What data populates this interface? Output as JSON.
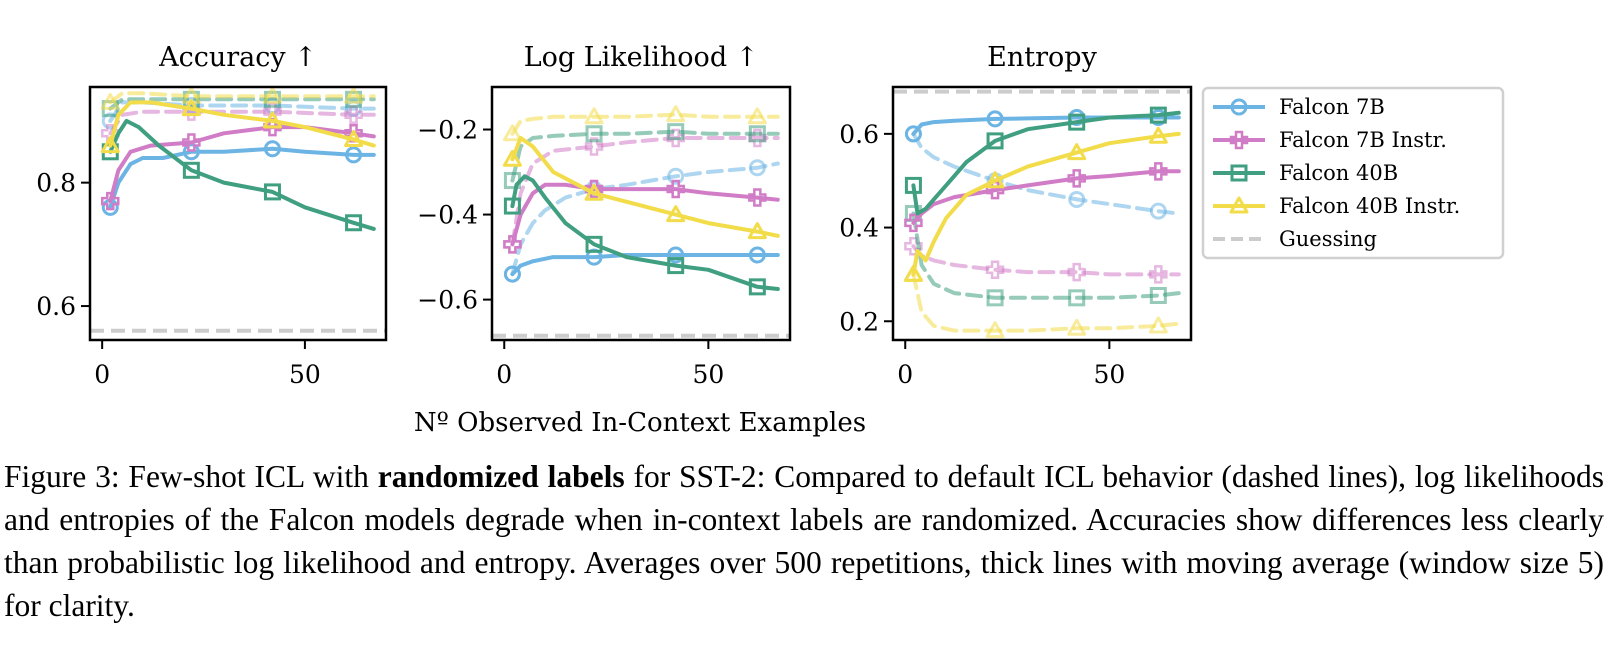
{
  "figure": {
    "shared_xlabel": "Nº Observed In-Context Examples",
    "legend": [
      {
        "name": "Falcon 7B",
        "color": "#6cb4e4",
        "marker": "circle"
      },
      {
        "name": "Falcon 7B Instr.",
        "color": "#d17cc6",
        "marker": "plus"
      },
      {
        "name": "Falcon 40B",
        "color": "#3f9f80",
        "marker": "square"
      },
      {
        "name": "Falcon 40B Instr.",
        "color": "#f2dc4a",
        "marker": "triangle"
      },
      {
        "name": "Guessing",
        "color": "#cccccc",
        "marker": "none"
      }
    ]
  },
  "chart_data": [
    {
      "type": "line",
      "title": "Accuracy ↑",
      "xlabel": "",
      "ylabel": "",
      "xlim": [
        -3,
        70
      ],
      "ylim": [
        0.545,
        0.955
      ],
      "xticks": [
        0,
        50
      ],
      "yticks": [
        0.6,
        0.8
      ],
      "ytick_labels": [
        "0.6",
        "0.8"
      ],
      "guessing": 0.56,
      "series": [
        {
          "name": "Falcon 7B",
          "style": "solid",
          "x": [
            2,
            4,
            7,
            10,
            15,
            22,
            30,
            42,
            50,
            62,
            67
          ],
          "y": [
            0.76,
            0.8,
            0.83,
            0.84,
            0.84,
            0.85,
            0.85,
            0.855,
            0.85,
            0.845,
            0.845
          ]
        },
        {
          "name": "Falcon 7B Instr.",
          "style": "solid",
          "x": [
            2,
            4,
            7,
            12,
            22,
            30,
            42,
            50,
            62,
            67
          ],
          "y": [
            0.77,
            0.82,
            0.85,
            0.86,
            0.865,
            0.88,
            0.89,
            0.89,
            0.88,
            0.875
          ]
        },
        {
          "name": "Falcon 40B",
          "style": "solid",
          "x": [
            2,
            4,
            6,
            9,
            14,
            22,
            30,
            42,
            50,
            62,
            67
          ],
          "y": [
            0.85,
            0.88,
            0.9,
            0.89,
            0.86,
            0.82,
            0.8,
            0.785,
            0.76,
            0.735,
            0.725
          ]
        },
        {
          "name": "Falcon 40B Instr.",
          "style": "solid",
          "x": [
            2,
            4,
            7,
            12,
            22,
            30,
            42,
            50,
            62,
            67
          ],
          "y": [
            0.86,
            0.91,
            0.93,
            0.93,
            0.92,
            0.91,
            0.9,
            0.89,
            0.87,
            0.86
          ]
        },
        {
          "name": "Falcon 7B",
          "style": "dashed",
          "x": [
            2,
            5,
            10,
            22,
            42,
            62,
            67
          ],
          "y": [
            0.9,
            0.93,
            0.93,
            0.925,
            0.925,
            0.92,
            0.92
          ]
        },
        {
          "name": "Falcon 7B Instr.",
          "style": "dashed",
          "x": [
            2,
            5,
            10,
            22,
            42,
            62,
            67
          ],
          "y": [
            0.88,
            0.91,
            0.915,
            0.915,
            0.915,
            0.91,
            0.91
          ]
        },
        {
          "name": "Falcon 40B",
          "style": "dashed",
          "x": [
            2,
            5,
            10,
            22,
            42,
            62,
            67
          ],
          "y": [
            0.92,
            0.935,
            0.935,
            0.935,
            0.935,
            0.935,
            0.935
          ]
        },
        {
          "name": "Falcon 40B Instr.",
          "style": "dashed",
          "x": [
            2,
            5,
            10,
            22,
            42,
            62,
            67
          ],
          "y": [
            0.93,
            0.945,
            0.945,
            0.94,
            0.94,
            0.94,
            0.94
          ]
        }
      ]
    },
    {
      "type": "line",
      "title": "Log Likelihood ↑",
      "xlabel": "",
      "ylabel": "",
      "xlim": [
        -3,
        70
      ],
      "ylim": [
        -0.695,
        -0.1
      ],
      "xticks": [
        0,
        50
      ],
      "yticks": [
        -0.6,
        -0.4,
        -0.2
      ],
      "ytick_labels": [
        "−0.6",
        "−0.4",
        "−0.2"
      ],
      "guessing": -0.685,
      "series": [
        {
          "name": "Falcon 7B",
          "style": "solid",
          "x": [
            2,
            4,
            7,
            12,
            22,
            30,
            42,
            50,
            62,
            67
          ],
          "y": [
            -0.54,
            -0.52,
            -0.51,
            -0.5,
            -0.5,
            -0.495,
            -0.495,
            -0.495,
            -0.495,
            -0.495
          ]
        },
        {
          "name": "Falcon 7B Instr.",
          "style": "solid",
          "x": [
            2,
            4,
            7,
            10,
            15,
            22,
            30,
            42,
            50,
            62,
            67
          ],
          "y": [
            -0.47,
            -0.4,
            -0.35,
            -0.33,
            -0.33,
            -0.34,
            -0.34,
            -0.34,
            -0.35,
            -0.36,
            -0.365
          ]
        },
        {
          "name": "Falcon 40B",
          "style": "solid",
          "x": [
            2,
            3,
            5,
            7,
            10,
            15,
            22,
            30,
            42,
            50,
            62,
            67
          ],
          "y": [
            -0.38,
            -0.33,
            -0.31,
            -0.32,
            -0.36,
            -0.42,
            -0.47,
            -0.5,
            -0.52,
            -0.53,
            -0.57,
            -0.575
          ]
        },
        {
          "name": "Falcon 40B Instr.",
          "style": "solid",
          "x": [
            2,
            4,
            7,
            12,
            22,
            30,
            42,
            50,
            62,
            67
          ],
          "y": [
            -0.27,
            -0.22,
            -0.24,
            -0.3,
            -0.35,
            -0.37,
            -0.4,
            -0.42,
            -0.44,
            -0.45
          ]
        },
        {
          "name": "Falcon 7B",
          "style": "dashed",
          "x": [
            2,
            4,
            7,
            10,
            15,
            22,
            30,
            42,
            50,
            62,
            67
          ],
          "y": [
            -0.54,
            -0.47,
            -0.42,
            -0.39,
            -0.36,
            -0.34,
            -0.33,
            -0.31,
            -0.3,
            -0.29,
            -0.28
          ]
        },
        {
          "name": "Falcon 7B Instr.",
          "style": "dashed",
          "x": [
            2,
            4,
            7,
            12,
            22,
            30,
            42,
            50,
            62,
            67
          ],
          "y": [
            -0.47,
            -0.35,
            -0.28,
            -0.25,
            -0.24,
            -0.23,
            -0.22,
            -0.22,
            -0.22,
            -0.22
          ]
        },
        {
          "name": "Falcon 40B",
          "style": "dashed",
          "x": [
            2,
            4,
            7,
            12,
            22,
            30,
            42,
            50,
            62,
            67
          ],
          "y": [
            -0.32,
            -0.24,
            -0.22,
            -0.215,
            -0.21,
            -0.21,
            -0.205,
            -0.21,
            -0.21,
            -0.21
          ]
        },
        {
          "name": "Falcon 40B Instr.",
          "style": "dashed",
          "x": [
            2,
            4,
            7,
            12,
            22,
            30,
            42,
            50,
            62,
            67
          ],
          "y": [
            -0.21,
            -0.18,
            -0.175,
            -0.17,
            -0.17,
            -0.17,
            -0.165,
            -0.17,
            -0.17,
            -0.17
          ]
        }
      ]
    },
    {
      "type": "line",
      "title": "Entropy",
      "xlabel": "",
      "ylabel": "",
      "xlim": [
        -3,
        70
      ],
      "ylim": [
        0.16,
        0.7
      ],
      "xticks": [
        0,
        50
      ],
      "yticks": [
        0.2,
        0.4,
        0.6
      ],
      "ytick_labels": [
        "0.2",
        "0.4",
        "0.6"
      ],
      "guessing": 0.69,
      "series": [
        {
          "name": "Falcon 7B",
          "style": "solid",
          "x": [
            2,
            4,
            7,
            12,
            22,
            30,
            42,
            50,
            62,
            67
          ],
          "y": [
            0.6,
            0.62,
            0.625,
            0.628,
            0.632,
            0.633,
            0.635,
            0.635,
            0.635,
            0.635
          ]
        },
        {
          "name": "Falcon 7B Instr.",
          "style": "solid",
          "x": [
            2,
            4,
            7,
            12,
            22,
            30,
            42,
            50,
            62,
            67
          ],
          "y": [
            0.41,
            0.43,
            0.45,
            0.465,
            0.48,
            0.49,
            0.505,
            0.51,
            0.52,
            0.52
          ]
        },
        {
          "name": "Falcon 40B",
          "style": "solid",
          "x": [
            2,
            3,
            5,
            7,
            10,
            15,
            22,
            30,
            42,
            50,
            62,
            67
          ],
          "y": [
            0.49,
            0.43,
            0.44,
            0.46,
            0.49,
            0.54,
            0.585,
            0.61,
            0.625,
            0.635,
            0.64,
            0.645
          ]
        },
        {
          "name": "Falcon 40B Instr.",
          "style": "solid",
          "x": [
            2,
            3,
            5,
            7,
            10,
            15,
            22,
            30,
            42,
            50,
            62,
            67
          ],
          "y": [
            0.3,
            0.35,
            0.33,
            0.37,
            0.42,
            0.47,
            0.5,
            0.53,
            0.56,
            0.58,
            0.595,
            0.6
          ]
        },
        {
          "name": "Falcon 7B",
          "style": "dashed",
          "x": [
            2,
            4,
            7,
            12,
            22,
            30,
            42,
            50,
            62,
            67
          ],
          "y": [
            0.6,
            0.57,
            0.55,
            0.53,
            0.5,
            0.48,
            0.46,
            0.45,
            0.435,
            0.43
          ]
        },
        {
          "name": "Falcon 7B Instr.",
          "style": "dashed",
          "x": [
            2,
            4,
            7,
            12,
            22,
            30,
            42,
            50,
            62,
            67
          ],
          "y": [
            0.36,
            0.34,
            0.33,
            0.32,
            0.31,
            0.305,
            0.305,
            0.3,
            0.3,
            0.3
          ]
        },
        {
          "name": "Falcon 40B",
          "style": "dashed",
          "x": [
            2,
            4,
            7,
            12,
            22,
            30,
            42,
            50,
            62,
            67
          ],
          "y": [
            0.43,
            0.32,
            0.28,
            0.26,
            0.25,
            0.25,
            0.25,
            0.25,
            0.255,
            0.26
          ]
        },
        {
          "name": "Falcon 40B Instr.",
          "style": "dashed",
          "x": [
            2,
            4,
            7,
            12,
            22,
            30,
            42,
            50,
            62,
            67
          ],
          "y": [
            0.3,
            0.22,
            0.19,
            0.18,
            0.18,
            0.18,
            0.185,
            0.185,
            0.19,
            0.195
          ]
        }
      ]
    }
  ],
  "caption": {
    "label": "Figure 3:",
    "pre": " Few-shot ICL with ",
    "bold": "randomized labels",
    "post": " for SST-2: Compared to default ICL behavior (dashed lines), log likelihoods and entropies of the Falcon models degrade when in-context labels are randomized. Accuracies show differences less clearly than probabilistic log likelihood and entropy. Averages over 500 repetitions, thick lines with moving average (window size 5) for clarity."
  }
}
